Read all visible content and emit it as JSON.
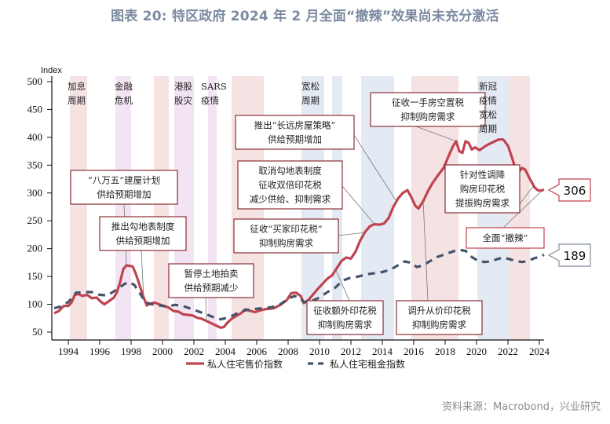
{
  "title": "图表 20: 特区政府 2024 年 2 月全面“撤辣”效果尚未充分激活",
  "source": "资料来源：Macrobond，兴业研究",
  "colors": {
    "price": "#c0434f",
    "rent": "#44546a",
    "band_pink": "#f5e3e4",
    "band_purple": "#f3e4f3",
    "band_blue": "#e4eaf4",
    "box_border": "#8b2e35",
    "callout_price_border": "#c0434f",
    "callout_rent_border": "#7f8c9a",
    "highlight_text": "#e0161b"
  },
  "chart_data": {
    "type": "line",
    "title": "图表 20: 特区政府 2024 年 2 月全面“撤辣”效果尚未充分激活",
    "ylabel": "Index",
    "xlabel": "",
    "ylim": [
      50,
      500
    ],
    "xlim": [
      1993.1,
      2024.6
    ],
    "yticks": [
      50,
      100,
      150,
      200,
      250,
      300,
      350,
      400,
      450,
      500
    ],
    "xticks": [
      1994,
      1996,
      1998,
      2000,
      2002,
      2004,
      2006,
      2008,
      2010,
      2012,
      2014,
      2016,
      2018,
      2020,
      2022,
      2024
    ],
    "grid": false,
    "legend_position": "bottom-center",
    "series": [
      {
        "name": "私人住宅售价指数",
        "style": "solid",
        "end_label": "306",
        "points": [
          [
            1993.1,
            84
          ],
          [
            1993.4,
            88
          ],
          [
            1993.7,
            97
          ],
          [
            1994.0,
            97
          ],
          [
            1994.2,
            103
          ],
          [
            1994.4,
            116
          ],
          [
            1994.6,
            119
          ],
          [
            1994.9,
            115
          ],
          [
            1995.2,
            117
          ],
          [
            1995.5,
            111
          ],
          [
            1995.8,
            112
          ],
          [
            1996.1,
            104
          ],
          [
            1996.3,
            100
          ],
          [
            1996.6,
            106
          ],
          [
            1996.9,
            112
          ],
          [
            1997.1,
            122
          ],
          [
            1997.3,
            140
          ],
          [
            1997.5,
            163
          ],
          [
            1997.7,
            170
          ],
          [
            1997.9,
            169
          ],
          [
            1998.1,
            168
          ],
          [
            1998.3,
            155
          ],
          [
            1998.5,
            138
          ],
          [
            1998.8,
            112
          ],
          [
            1999.0,
            98
          ],
          [
            1999.2,
            101
          ],
          [
            1999.5,
            103
          ],
          [
            1999.8,
            100
          ],
          [
            2000.1,
            97
          ],
          [
            2000.4,
            94
          ],
          [
            2000.7,
            88
          ],
          [
            2001.0,
            87
          ],
          [
            2001.3,
            82
          ],
          [
            2001.6,
            81
          ],
          [
            2001.9,
            80
          ],
          [
            2002.2,
            76
          ],
          [
            2002.5,
            74
          ],
          [
            2002.8,
            70
          ],
          [
            2003.1,
            66
          ],
          [
            2003.4,
            62
          ],
          [
            2003.7,
            58
          ],
          [
            2003.9,
            59
          ],
          [
            2004.1,
            66
          ],
          [
            2004.4,
            74
          ],
          [
            2004.7,
            79
          ],
          [
            2005.0,
            84
          ],
          [
            2005.3,
            91
          ],
          [
            2005.6,
            88
          ],
          [
            2005.9,
            86
          ],
          [
            2006.2,
            89
          ],
          [
            2006.5,
            91
          ],
          [
            2006.8,
            92
          ],
          [
            2007.1,
            93
          ],
          [
            2007.5,
            99
          ],
          [
            2007.9,
            107
          ],
          [
            2008.2,
            120
          ],
          [
            2008.5,
            121
          ],
          [
            2008.8,
            115
          ],
          [
            2009.0,
            102
          ],
          [
            2009.3,
            108
          ],
          [
            2009.6,
            118
          ],
          [
            2009.9,
            128
          ],
          [
            2010.2,
            137
          ],
          [
            2010.5,
            146
          ],
          [
            2010.8,
            152
          ],
          [
            2011.1,
            165
          ],
          [
            2011.4,
            178
          ],
          [
            2011.7,
            184
          ],
          [
            2012.0,
            182
          ],
          [
            2012.3,
            195
          ],
          [
            2012.6,
            215
          ],
          [
            2012.9,
            230
          ],
          [
            2013.2,
            240
          ],
          [
            2013.5,
            244
          ],
          [
            2013.8,
            243
          ],
          [
            2014.1,
            245
          ],
          [
            2014.4,
            255
          ],
          [
            2014.7,
            275
          ],
          [
            2015.0,
            290
          ],
          [
            2015.3,
            300
          ],
          [
            2015.6,
            305
          ],
          [
            2015.8,
            295
          ],
          [
            2016.1,
            277
          ],
          [
            2016.3,
            272
          ],
          [
            2016.6,
            285
          ],
          [
            2016.9,
            303
          ],
          [
            2017.2,
            318
          ],
          [
            2017.6,
            334
          ],
          [
            2017.9,
            345
          ],
          [
            2018.2,
            365
          ],
          [
            2018.5,
            384
          ],
          [
            2018.7,
            393
          ],
          [
            2018.9,
            375
          ],
          [
            2019.1,
            372
          ],
          [
            2019.3,
            393
          ],
          [
            2019.5,
            390
          ],
          [
            2019.7,
            378
          ],
          [
            2019.9,
            382
          ],
          [
            2020.2,
            377
          ],
          [
            2020.5,
            383
          ],
          [
            2020.8,
            388
          ],
          [
            2021.1,
            392
          ],
          [
            2021.4,
            396
          ],
          [
            2021.7,
            396
          ],
          [
            2022.0,
            385
          ],
          [
            2022.3,
            360
          ],
          [
            2022.5,
            340
          ],
          [
            2022.7,
            338
          ],
          [
            2022.9,
            345
          ],
          [
            2023.1,
            342
          ],
          [
            2023.4,
            325
          ],
          [
            2023.7,
            310
          ],
          [
            2023.9,
            305
          ],
          [
            2024.1,
            304
          ],
          [
            2024.3,
            306
          ]
        ]
      },
      {
        "name": "私人住宅租金指数",
        "style": "dashed",
        "end_label": "189",
        "points": [
          [
            1993.1,
            93
          ],
          [
            1993.5,
            96
          ],
          [
            1994.0,
            104
          ],
          [
            1994.5,
            121
          ],
          [
            1995.0,
            122
          ],
          [
            1995.5,
            122
          ],
          [
            1996.0,
            117
          ],
          [
            1996.5,
            116
          ],
          [
            1997.0,
            125
          ],
          [
            1997.5,
            135
          ],
          [
            1997.8,
            140
          ],
          [
            1998.2,
            135
          ],
          [
            1998.6,
            118
          ],
          [
            1998.9,
            104
          ],
          [
            1999.3,
            100
          ],
          [
            1999.8,
            98
          ],
          [
            2000.3,
            96
          ],
          [
            2000.8,
            99
          ],
          [
            2001.3,
            97
          ],
          [
            2001.8,
            92
          ],
          [
            2002.3,
            87
          ],
          [
            2002.8,
            82
          ],
          [
            2003.3,
            76
          ],
          [
            2003.7,
            73
          ],
          [
            2004.0,
            75
          ],
          [
            2004.5,
            80
          ],
          [
            2005.0,
            88
          ],
          [
            2005.5,
            90
          ],
          [
            2006.0,
            92
          ],
          [
            2006.5,
            93
          ],
          [
            2007.0,
            95
          ],
          [
            2007.5,
            100
          ],
          [
            2008.0,
            110
          ],
          [
            2008.4,
            115
          ],
          [
            2008.7,
            112
          ],
          [
            2009.0,
            104
          ],
          [
            2009.5,
            106
          ],
          [
            2010.0,
            112
          ],
          [
            2010.5,
            122
          ],
          [
            2011.0,
            130
          ],
          [
            2011.5,
            143
          ],
          [
            2012.0,
            148
          ],
          [
            2012.5,
            150
          ],
          [
            2013.0,
            154
          ],
          [
            2013.5,
            156
          ],
          [
            2014.0,
            158
          ],
          [
            2014.5,
            162
          ],
          [
            2015.0,
            170
          ],
          [
            2015.4,
            177
          ],
          [
            2015.8,
            175
          ],
          [
            2016.2,
            167
          ],
          [
            2016.6,
            170
          ],
          [
            2017.0,
            177
          ],
          [
            2017.5,
            185
          ],
          [
            2018.0,
            190
          ],
          [
            2018.5,
            195
          ],
          [
            2018.9,
            198
          ],
          [
            2019.3,
            196
          ],
          [
            2019.7,
            185
          ],
          [
            2020.1,
            178
          ],
          [
            2020.5,
            176
          ],
          [
            2020.9,
            177
          ],
          [
            2021.3,
            181
          ],
          [
            2021.7,
            184
          ],
          [
            2022.1,
            181
          ],
          [
            2022.5,
            178
          ],
          [
            2022.9,
            176
          ],
          [
            2023.3,
            178
          ],
          [
            2023.7,
            183
          ],
          [
            2024.0,
            185
          ],
          [
            2024.3,
            189
          ]
        ]
      }
    ],
    "shaded_periods": [
      {
        "from": 1994.1,
        "to": 1995.2,
        "color": "pink",
        "label": [
          "加息",
          "周期"
        ]
      },
      {
        "from": 1997.0,
        "to": 1998.0,
        "color": "purple",
        "label": [
          "金融",
          "危机"
        ]
      },
      {
        "from": 1999.45,
        "to": 2000.4,
        "color": "pink",
        "label": []
      },
      {
        "from": 2000.75,
        "to": 2002.0,
        "color": "purple",
        "label": [
          "港股",
          "股灾"
        ]
      },
      {
        "from": 2002.9,
        "to": 2003.45,
        "color": "purple",
        "label": [
          "SARS",
          "疫情"
        ]
      },
      {
        "from": 2004.4,
        "to": 2006.45,
        "color": "pink",
        "label": []
      },
      {
        "from": 2008.85,
        "to": 2010.3,
        "color": "blue",
        "label": [
          "宽松",
          "周期"
        ]
      },
      {
        "from": 2010.8,
        "to": 2011.45,
        "color": "blue",
        "label": []
      },
      {
        "from": 2012.65,
        "to": 2014.75,
        "color": "blue",
        "label": []
      },
      {
        "from": 2015.85,
        "to": 2018.85,
        "color": "pink",
        "label": []
      },
      {
        "from": 2020.05,
        "to": 2022.05,
        "color": "blue",
        "label": [
          "新冠",
          "疫情",
          "宽松",
          "周期"
        ]
      },
      {
        "from": 2022.05,
        "to": 2023.4,
        "color": "pink",
        "label": []
      }
    ],
    "annotations": [
      {
        "id": "bawanwu",
        "lines": [
          "“八万五”建屋计划",
          "供给预期增加"
        ],
        "target": [
          1997.7,
          170
        ]
      },
      {
        "id": "goudi",
        "lines": [
          "推出勾地表制度",
          "供给预期增加"
        ],
        "target": [
          1998.8,
          110
        ]
      },
      {
        "id": "tingpai",
        "lines": [
          "暂停土地拍卖",
          "供给预期减少"
        ],
        "target": [
          2002.8,
          70
        ]
      },
      {
        "id": "changyuan",
        "lines": [
          "推出“长远房屋策略”",
          "供给预期增加"
        ],
        "target": [
          2014.9,
          285
        ]
      },
      {
        "id": "quxiao",
        "lines": [
          "取消勾地表制度",
          "征收双倍印花税",
          "减少供给、抑制需求"
        ],
        "target": [
          2013.5,
          244
        ]
      },
      {
        "id": "maijia",
        "lines": [
          "征收“买家印花税”",
          "抑制购房需求"
        ],
        "target": [
          2012.9,
          229
        ]
      },
      {
        "id": "ewai",
        "lines": [
          "征收额外印花税",
          "抑制购房需求"
        ],
        "target": [
          2011.0,
          164
        ]
      },
      {
        "id": "yishou",
        "lines": [
          "征收一手房空置税",
          "抑制购房需求"
        ],
        "target": [
          2018.7,
          393
        ]
      },
      {
        "id": "congjia",
        "lines": [
          "调升从价印花税",
          "抑制购房需求"
        ],
        "target": [
          2016.6,
          286
        ]
      },
      {
        "id": "zhenduixing",
        "lines": [
          "针对性调降",
          "购房印花税",
          "提振购房需求"
        ],
        "target": [
          2023.6,
          312
        ]
      },
      {
        "id": "chela",
        "lines": [
          "全面“撤辣”"
        ],
        "target": [
          2024.2,
          305
        ],
        "highlight": true
      }
    ]
  },
  "legend": [
    {
      "label": "私人住宅售价指数",
      "style": "solid"
    },
    {
      "label": "私人住宅租金指数",
      "style": "dashed"
    }
  ]
}
